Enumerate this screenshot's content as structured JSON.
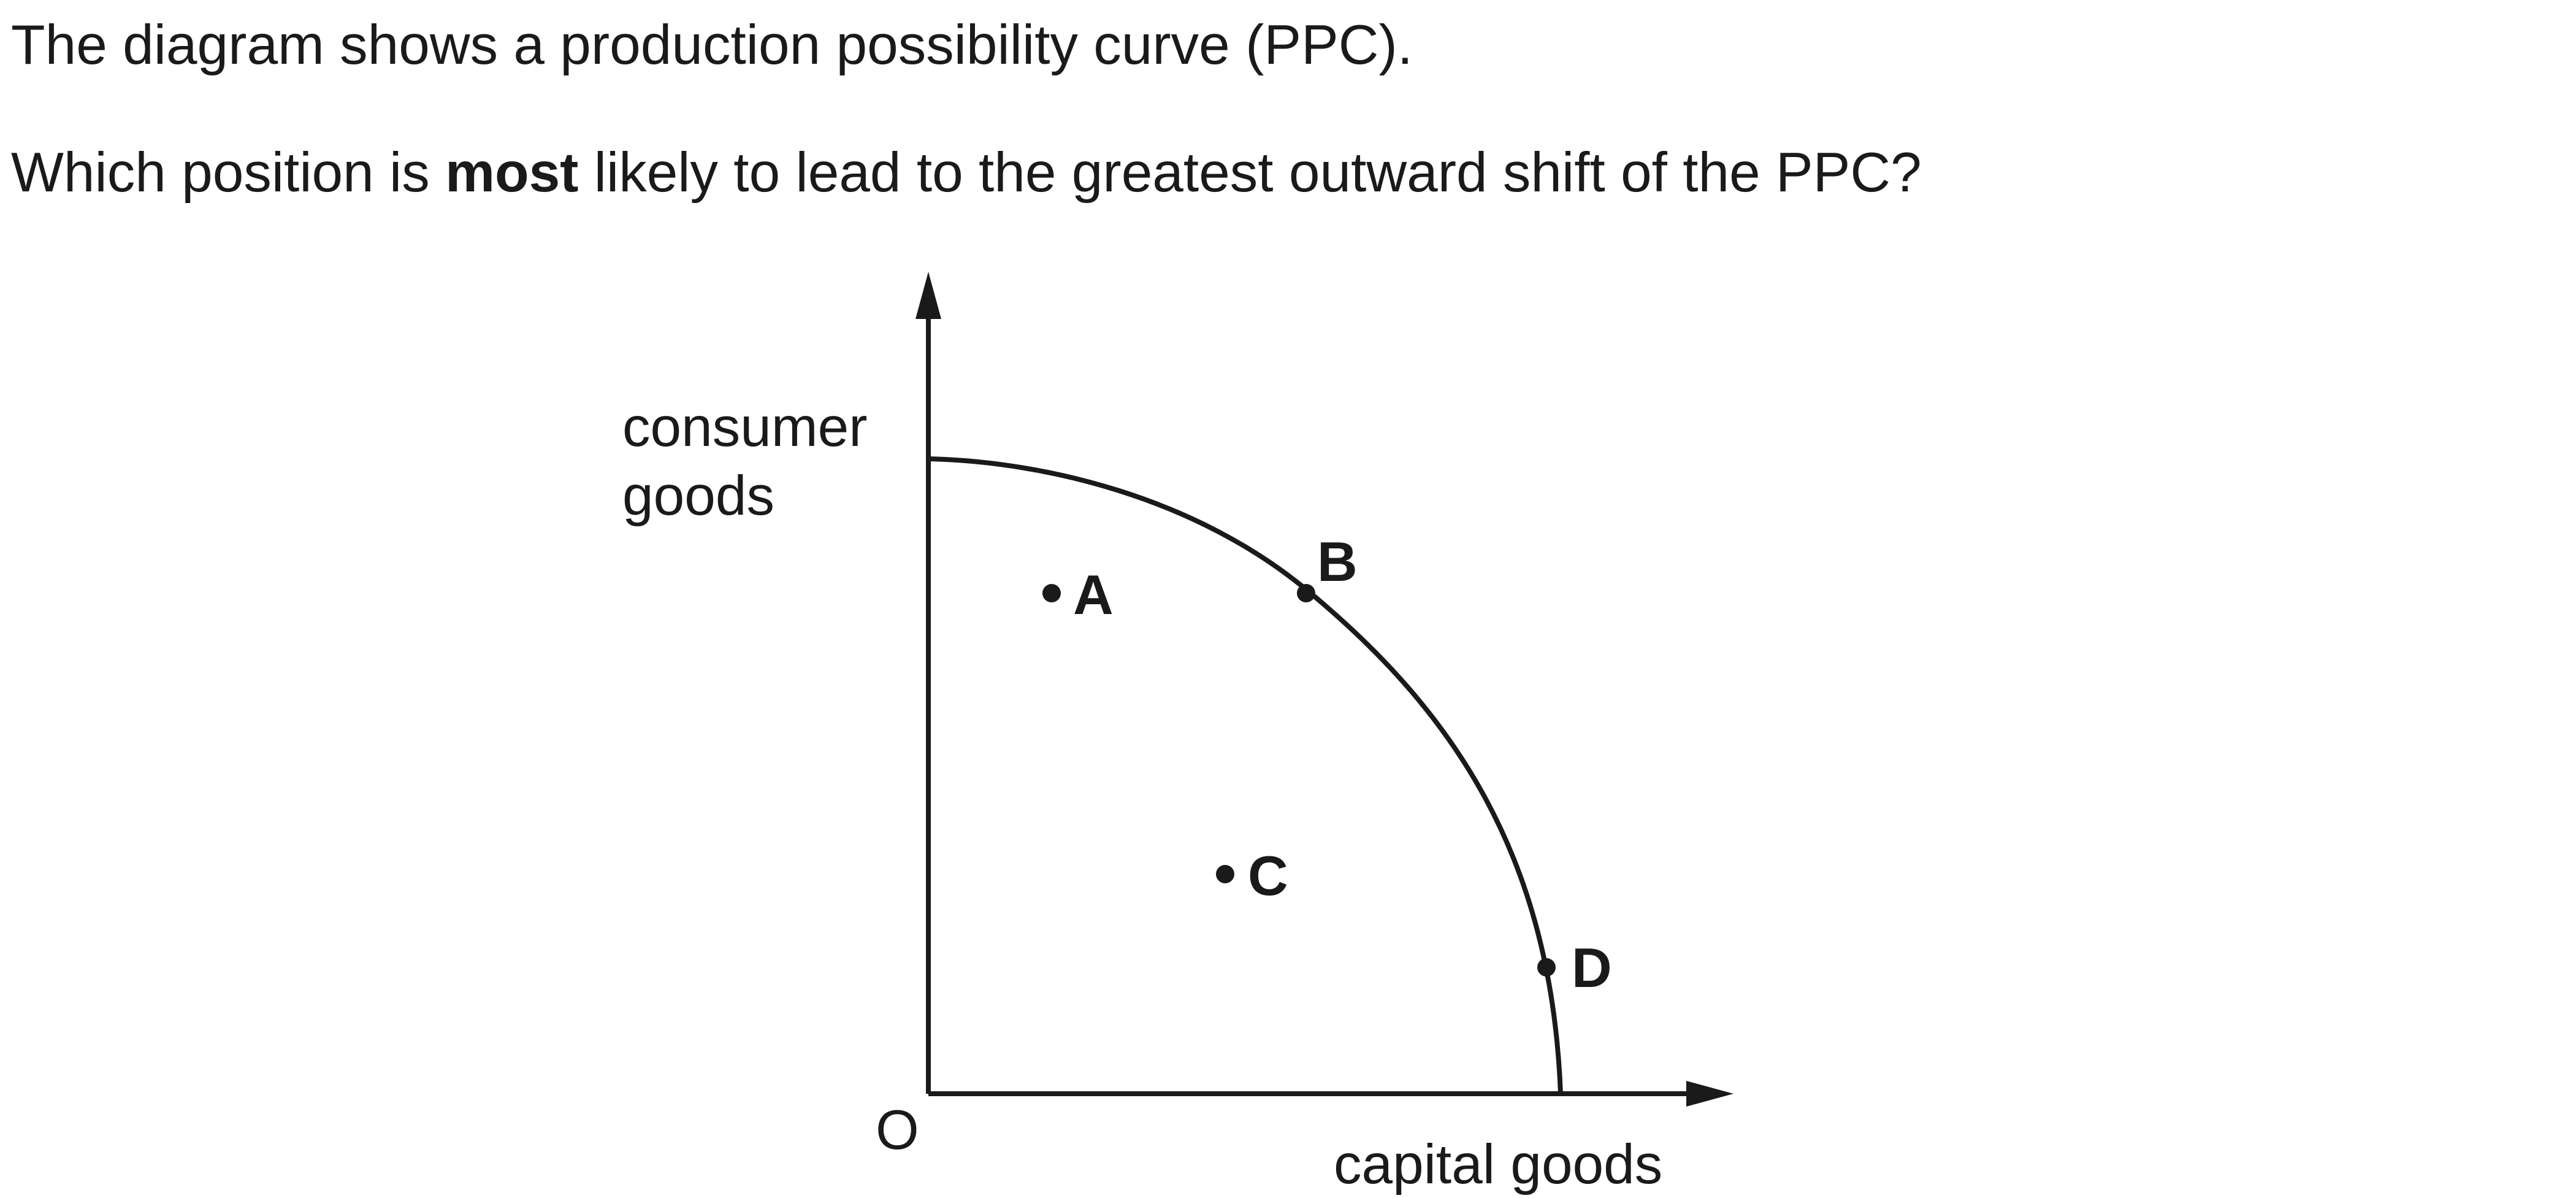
{
  "question": {
    "line1": "The diagram shows a production possibility curve (PPC).",
    "line2_before": "Which position is ",
    "line2_emphasis": "most",
    "line2_after": " likely to lead to the greatest outward shift of the PPC?"
  },
  "diagram": {
    "y_axis_label_line1": "consumer",
    "y_axis_label_line2": "goods",
    "x_axis_label": "capital goods",
    "origin_label": "O",
    "points": [
      {
        "label": "A"
      },
      {
        "label": "B"
      },
      {
        "label": "C"
      },
      {
        "label": "D"
      }
    ]
  }
}
